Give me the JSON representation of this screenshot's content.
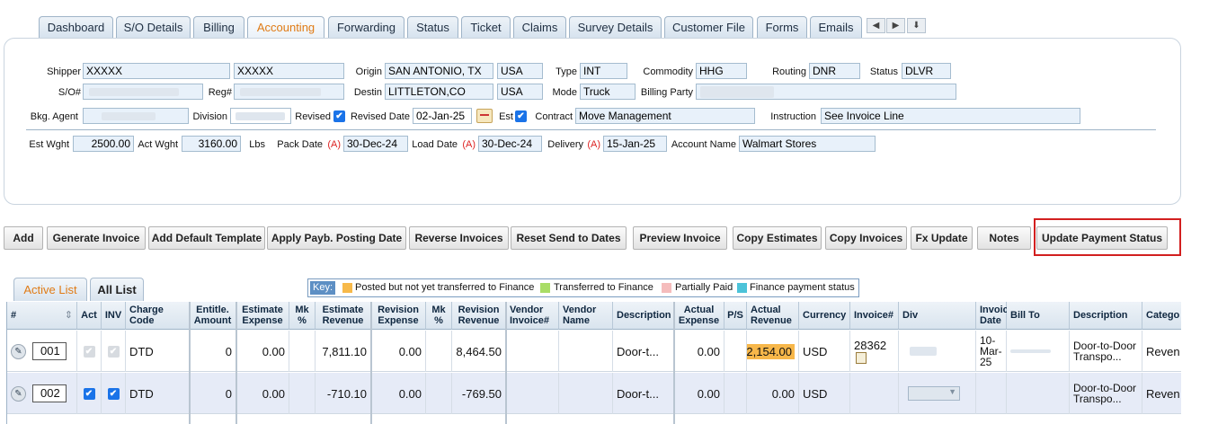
{
  "tabs": [
    "Dashboard",
    "S/O Details",
    "Billing",
    "Accounting",
    "Forwarding",
    "Status",
    "Ticket",
    "Claims",
    "Survey Details",
    "Customer File",
    "Forms",
    "Emails"
  ],
  "tab_nav": [
    "◀",
    "▶",
    "⬇"
  ],
  "header": {
    "shipper_label": "Shipper",
    "shipper_value": "XXXXX",
    "shipper_value2": "XXXXX",
    "origin_label": "Origin",
    "origin_value": "SAN ANTONIO, TX",
    "origin_country": "USA",
    "type_label": "Type",
    "type_value": "INT",
    "commodity_label": "Commodity",
    "commodity_value": "HHG",
    "routing_label": "Routing",
    "routing_value": "DNR",
    "status_label": "Status",
    "status_value": "DLVR",
    "so_label": "S/O#",
    "reg_label": "Reg#",
    "destin_label": "Destin",
    "destin_value": "LITTLETON,CO",
    "destin_country": "USA",
    "mode_label": "Mode",
    "mode_value": "Truck",
    "billing_party_label": "Billing Party",
    "bkg_agent_label": "Bkg. Agent",
    "division_label": "Division",
    "revised_label": "Revised",
    "revised_date_label": "Revised Date",
    "revised_date_value": "02-Jan-25",
    "est_label": "Est",
    "contract_label": "Contract",
    "contract_value": "Move Management",
    "instruction_label": "Instruction",
    "instruction_value": "See Invoice Line",
    "est_wght_label": "Est Wght",
    "est_wght_value": "2500.00",
    "act_wght_label": "Act Wght",
    "act_wght_value": "3160.00",
    "lbs_label": "Lbs",
    "pack_date_label": "Pack Date",
    "load_date_label": "Load Date",
    "delivery_label": "Delivery",
    "a_marker": "(A)",
    "pack_date_value": "30-Dec-24",
    "load_date_value": "30-Dec-24",
    "delivery_value": "15-Jan-25",
    "account_name_label": "Account Name",
    "account_name_value": "Walmart Stores"
  },
  "actions": [
    "Add",
    "Generate Invoice",
    "Add Default Template",
    "Apply Payb. Posting Date",
    "Reverse Invoices",
    "Reset Send to Dates",
    "Preview Invoice",
    "Copy Estimates",
    "Copy Invoices",
    "Fx Update",
    "Notes",
    "Update Payment Status"
  ],
  "list_tabs": [
    "Active List",
    "All List"
  ],
  "key": {
    "label": "Key:",
    "items": [
      {
        "text": "Posted but not yet transferred to Finance",
        "color": "#f7b94a"
      },
      {
        "text": "Transferred to Finance",
        "color": "#a9dd66"
      },
      {
        "text": "Partially Paid",
        "color": "#f5bcbc"
      },
      {
        "text": "Finance payment status",
        "color": "#4cc3d9"
      }
    ]
  },
  "columns": [
    "#",
    "Act",
    "INV",
    "Charge Code",
    "Entitle. Amount",
    "Estimate Expense",
    "Mk %",
    "Estimate Revenue",
    "Revision Expense",
    "Mk %",
    "Revision Revenue",
    "Vendor Invoice#",
    "Vendor Name",
    "Description",
    "Actual Expense",
    "P/S",
    "Actual Revenue",
    "Currency",
    "Invoice#",
    "Div",
    "Invoice Date",
    "Bill To",
    "Description",
    "Catego"
  ],
  "sort_icon": "⇕",
  "rows": [
    {
      "line": "001",
      "act": false,
      "inv": false,
      "charge_code": "DTD",
      "entitle": "0",
      "est_expense": "0.00",
      "mk1": "",
      "est_revenue": "7,811.10",
      "rev_expense": "0.00",
      "mk2": "",
      "rev_revenue": "8,464.50",
      "vendor_invoice": "",
      "vendor_name": "",
      "description": "Door-t...",
      "actual_expense": "0.00",
      "ps": "",
      "actual_revenue": "2,154.00",
      "currency": "USD",
      "invoice": "28362",
      "invoice_date": "10-Mar-25",
      "bill_to": "",
      "description2": "Door-to-Door Transpo...",
      "category": "Reven"
    },
    {
      "line": "002",
      "act": true,
      "inv": true,
      "charge_code": "DTD",
      "entitle": "0",
      "est_expense": "0.00",
      "mk1": "",
      "est_revenue": "-710.10",
      "rev_expense": "0.00",
      "mk2": "",
      "rev_revenue": "-769.50",
      "vendor_invoice": "",
      "vendor_name": "",
      "description": "Door-t...",
      "actual_expense": "0.00",
      "ps": "",
      "actual_revenue": "0.00",
      "currency": "USD",
      "invoice": "",
      "invoice_date": "",
      "bill_to": "",
      "description2": "Door-to-Door Transpo...",
      "category": "Reven"
    }
  ],
  "icons": {
    "edit": "pencil-icon",
    "check": "✔"
  }
}
